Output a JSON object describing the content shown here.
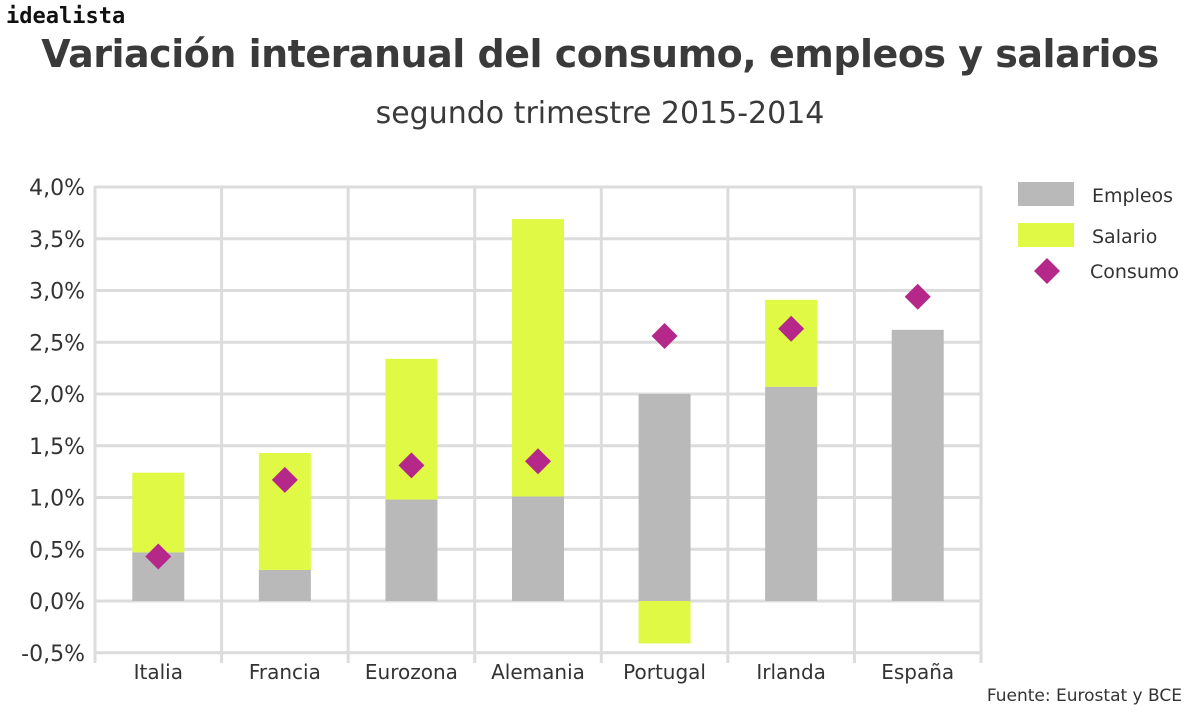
{
  "logo": "idealista",
  "title": "Variación interanual del consumo, empleos y salarios",
  "subtitle": "segundo trimestre 2015-2014",
  "source": "Fuente: Eurostat y BCE",
  "chart_data": {
    "type": "bar",
    "stacked": true,
    "title": "Variación interanual del consumo, empleos y salarios",
    "subtitle": "segundo trimestre 2015-2014",
    "categories": [
      "Italia",
      "Francia",
      "Eurozona",
      "Alemania",
      "Portugal",
      "Irlanda",
      "España"
    ],
    "series": [
      {
        "name": "Empleos",
        "kind": "bar",
        "color": "#b9b9b9",
        "values": [
          0.47,
          0.3,
          0.98,
          1.01,
          2.0,
          2.07,
          2.62
        ]
      },
      {
        "name": "Salario",
        "kind": "bar",
        "color": "#dff944",
        "values": [
          0.77,
          1.13,
          1.36,
          2.68,
          -0.41,
          0.84,
          0.0
        ]
      },
      {
        "name": "Consumo",
        "kind": "diamond",
        "color": "#b5288a",
        "values": [
          0.43,
          1.17,
          1.31,
          1.35,
          2.56,
          2.63,
          2.94
        ]
      }
    ],
    "yticks": [
      "-0,5%",
      "0,0%",
      "0,5%",
      "1,0%",
      "1,5%",
      "2,0%",
      "2,5%",
      "3,0%",
      "3,5%",
      "4,0%"
    ],
    "ytick_values": [
      -0.5,
      0,
      0.5,
      1,
      1.5,
      2,
      2.5,
      3,
      3.5,
      4
    ],
    "ylim": [
      -0.5,
      4.0
    ],
    "xlabel": "",
    "ylabel": "",
    "grid": true,
    "legend": "right"
  }
}
